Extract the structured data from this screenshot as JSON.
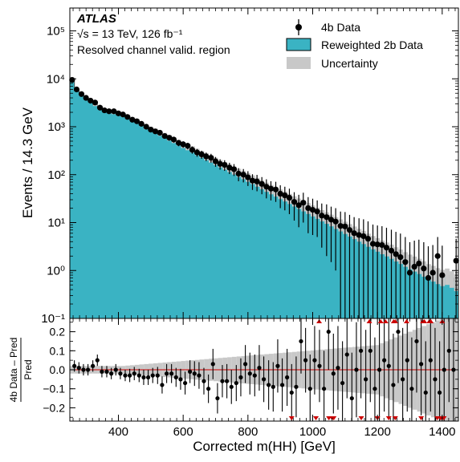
{
  "chart_data": [
    {
      "type": "histogram",
      "panel": "main",
      "log_y": true,
      "xlabel": "Corrected m(HH) [GeV]",
      "ylabel": "Events / 14.3 GeV",
      "xlim": [
        250,
        1450
      ],
      "ylim": [
        0.1,
        300000
      ],
      "y_ticks": [
        0.1,
        1,
        10,
        100,
        1000,
        10000,
        100000
      ],
      "y_tick_labels": [
        "10⁻¹",
        "10⁰",
        "10¹",
        "10²",
        "10³",
        "10⁴",
        "10⁵"
      ],
      "annotations": {
        "experiment": "ATLAS",
        "energy": "√s = 13 TeV, 126 fb⁻¹",
        "region": "Resolved channel valid. region"
      },
      "legend": {
        "placement": "top-right",
        "entries": [
          {
            "label": "4b Data",
            "style": "marker",
            "color": "#000000"
          },
          {
            "label": "Reweighted 2b Data",
            "style": "fill",
            "color": "#3ab3c3"
          },
          {
            "label": "Uncertainty",
            "style": "fill",
            "color": "#c8c8c8"
          }
        ]
      },
      "series": [
        {
          "name": "Reweighted 2b Data",
          "kind": "filled-step",
          "x_edges_start": 250,
          "bin_width": 14.3,
          "values": [
            9000,
            6000,
            4700,
            3900,
            3400,
            2900,
            2500,
            2250,
            2100,
            2000,
            1900,
            1750,
            1600,
            1450,
            1300,
            1150,
            1000,
            900,
            820,
            740,
            660,
            590,
            530,
            470,
            420,
            380,
            340,
            300,
            270,
            240,
            215,
            192,
            172,
            155,
            139,
            124,
            111,
            100,
            89,
            80,
            71,
            63,
            56,
            50,
            45,
            40,
            36,
            32,
            28.5,
            25.5,
            22.8,
            20.3,
            18.1,
            16.2,
            14.4,
            12.9,
            11.5,
            10.2,
            9.1,
            8.1,
            7.2,
            6.4,
            5.7,
            5.1,
            4.5,
            4.0,
            3.6,
            3.2,
            2.9,
            2.6,
            2.3,
            2.05,
            1.8,
            1.6,
            1.45,
            1.3,
            1.15,
            1.0,
            0.92,
            0.82,
            0.75,
            0.8,
            0.7,
            0.6,
            0.12
          ]
        },
        {
          "name": "4b Data",
          "kind": "points",
          "x": [
            257,
            271,
            286,
            300,
            314,
            328,
            343,
            357,
            371,
            386,
            400,
            414,
            428,
            443,
            457,
            471,
            486,
            500,
            514,
            528,
            543,
            557,
            571,
            586,
            600,
            614,
            628,
            643,
            657,
            671,
            686,
            700,
            714,
            728,
            743,
            757,
            771,
            786,
            800,
            814,
            828,
            843,
            857,
            871,
            886,
            900,
            914,
            928,
            943,
            957,
            971,
            986,
            1000,
            1014,
            1028,
            1043,
            1057,
            1071,
            1086,
            1100,
            1114,
            1128,
            1143,
            1157,
            1171,
            1186,
            1200,
            1214,
            1228,
            1243,
            1257,
            1271,
            1286,
            1300,
            1314,
            1328,
            1343,
            1357,
            1371,
            1386,
            1400,
            1443
          ],
          "y": [
            9500,
            6000,
            4800,
            4000,
            3500,
            3200,
            2500,
            2200,
            2100,
            2100,
            1900,
            1800,
            1600,
            1400,
            1300,
            1150,
            1000,
            870,
            800,
            750,
            640,
            590,
            540,
            460,
            430,
            400,
            330,
            290,
            265,
            240,
            225,
            190,
            168,
            160,
            140,
            130,
            105,
            100,
            88,
            75,
            72,
            64,
            56,
            51,
            49,
            40,
            37,
            33,
            27,
            23,
            26,
            20,
            18.5,
            17,
            14,
            13,
            11.5,
            10.5,
            8.5,
            8.3,
            7.0,
            6.0,
            5.5,
            5.2,
            4.6,
            3.6,
            3.5,
            3.4,
            3.0,
            2.6,
            2.2,
            1.9,
            1.5,
            0.9,
            1.2,
            1.4,
            1.1,
            0.7,
            0.9,
            2.0,
            0.8,
            1.6
          ],
          "y_err": [
            300,
            240,
            215,
            200,
            185,
            178,
            158,
            148,
            145,
            145,
            138,
            134,
            126,
            118,
            114,
            107,
            100,
            93,
            89,
            87,
            80,
            77,
            73,
            68,
            66,
            63,
            57,
            54,
            51,
            49,
            47,
            44,
            41,
            40,
            37,
            36,
            32,
            31,
            30,
            27,
            27,
            25,
            24,
            22,
            22,
            20,
            19,
            18,
            16,
            15,
            16,
            14,
            13,
            12,
            11,
            11,
            10,
            9.5,
            8.5,
            8.3,
            7.5,
            7,
            6.8,
            6.5,
            6,
            5.5,
            5.2,
            5,
            4.8,
            4.5,
            4.2,
            4,
            3.5,
            3,
            3,
            3,
            2.8,
            2.5,
            2.5,
            3,
            2.5,
            3
          ]
        }
      ]
    },
    {
      "type": "scatter",
      "panel": "ratio",
      "xlabel": "Corrected m(HH) [GeV]",
      "ylabel": "4b Data – Pred / Pred",
      "ylabel_numerator": "4b Data – Pred",
      "ylabel_denominator": "Pred",
      "xlim": [
        250,
        1450
      ],
      "ylim": [
        -0.27,
        0.27
      ],
      "x_ticks": [
        400,
        600,
        800,
        1000,
        1200,
        1400
      ],
      "x_tick_labels": [
        "400",
        "600",
        "800",
        "1000",
        "1200",
        "1400"
      ],
      "y_ticks": [
        -0.2,
        -0.1,
        0.0,
        0.1,
        0.2
      ],
      "y_tick_labels": [
        "−0.2",
        "−0.1",
        "0.0",
        "0.1",
        "0.2"
      ],
      "reference_line": {
        "y": 0,
        "color": "#cc0000"
      },
      "uncertainty_band_halfwidth": [
        0.02,
        0.02,
        0.02,
        0.02,
        0.02,
        0.02,
        0.02,
        0.02,
        0.02,
        0.02,
        0.02,
        0.02,
        0.022,
        0.024,
        0.026,
        0.028,
        0.03,
        0.032,
        0.034,
        0.036,
        0.038,
        0.04,
        0.042,
        0.044,
        0.046,
        0.048,
        0.05,
        0.052,
        0.054,
        0.056,
        0.058,
        0.06,
        0.062,
        0.064,
        0.066,
        0.068,
        0.07,
        0.072,
        0.074,
        0.076,
        0.078,
        0.08,
        0.082,
        0.084,
        0.086,
        0.088,
        0.09,
        0.092,
        0.094,
        0.096,
        0.098,
        0.1,
        0.102,
        0.104,
        0.106,
        0.108,
        0.11,
        0.112,
        0.114,
        0.116,
        0.118,
        0.12,
        0.122,
        0.124,
        0.126,
        0.128,
        0.13,
        0.14,
        0.15,
        0.16,
        0.17,
        0.18,
        0.19,
        0.2,
        0.21,
        0.22,
        0.23,
        0.24,
        0.25,
        0.26,
        0.27,
        0.27,
        0.27,
        0.27,
        0.27
      ],
      "points": {
        "x": [
          264,
          278,
          292,
          306,
          321,
          335,
          349,
          364,
          378,
          392,
          406,
          421,
          435,
          449,
          464,
          478,
          492,
          506,
          521,
          535,
          549,
          564,
          578,
          592,
          606,
          621,
          635,
          649,
          664,
          678,
          692,
          706,
          721,
          735,
          749,
          764,
          778,
          792,
          806,
          821,
          835,
          849,
          864,
          878,
          892,
          906,
          921,
          935,
          949,
          964,
          978,
          992,
          1006,
          1021,
          1035,
          1049,
          1064,
          1078,
          1092,
          1106,
          1121,
          1135,
          1149,
          1164,
          1178,
          1192,
          1206,
          1221,
          1235,
          1249,
          1264,
          1278,
          1292,
          1306,
          1321,
          1335,
          1349,
          1364,
          1378,
          1392,
          1406,
          1421,
          1435
        ],
        "y": [
          0.02,
          0.01,
          0.0,
          0.0,
          0.02,
          0.05,
          -0.01,
          -0.01,
          -0.02,
          0.0,
          -0.02,
          -0.03,
          -0.03,
          -0.02,
          -0.03,
          -0.04,
          -0.04,
          -0.03,
          -0.03,
          -0.08,
          -0.02,
          -0.02,
          -0.04,
          -0.05,
          -0.07,
          -0.01,
          -0.02,
          -0.03,
          -0.06,
          -0.1,
          0.03,
          -0.15,
          -0.06,
          -0.06,
          -0.09,
          -0.07,
          -0.04,
          0.03,
          -0.02,
          -0.03,
          0.01,
          -0.05,
          -0.08,
          -0.09,
          0.02,
          -0.08,
          -0.04,
          -0.12,
          -0.09,
          0.15,
          0.05,
          -0.1,
          0.05,
          0.02,
          -0.1,
          0.2,
          -0.02,
          0.01,
          -0.07,
          0.08,
          -0.15,
          0.0,
          0.1,
          -0.05,
          0.1,
          -0.1,
          0.0,
          0.05,
          0.02,
          -0.08,
          0.2,
          -0.05,
          0.05,
          -0.1,
          0.15,
          0.03,
          -0.12,
          0.05,
          -0.05,
          -0.12,
          0.0,
          0.1,
          0.0
        ],
        "y_err": [
          0.03,
          0.03,
          0.03,
          0.03,
          0.03,
          0.03,
          0.03,
          0.03,
          0.03,
          0.03,
          0.03,
          0.03,
          0.035,
          0.035,
          0.035,
          0.04,
          0.04,
          0.04,
          0.045,
          0.045,
          0.05,
          0.05,
          0.05,
          0.055,
          0.06,
          0.06,
          0.065,
          0.07,
          0.07,
          0.075,
          0.08,
          0.08,
          0.085,
          0.09,
          0.09,
          0.095,
          0.1,
          0.1,
          0.11,
          0.11,
          0.12,
          0.12,
          0.13,
          0.13,
          0.14,
          0.14,
          0.15,
          0.15,
          0.16,
          0.17,
          0.17,
          0.18,
          0.18,
          0.19,
          0.2,
          0.2,
          0.21,
          0.22,
          0.22,
          0.23,
          0.24,
          0.25,
          0.25,
          0.26,
          0.27,
          0.27,
          0.27,
          0.27,
          0.27,
          0.27,
          0.27,
          0.27,
          0.27,
          0.27,
          0.27,
          0.27,
          0.27,
          0.27,
          0.27,
          0.27,
          0.27,
          0.27,
          0.27
        ]
      },
      "overflow_markers_up_x": [
        1020,
        1175,
        1210,
        1225,
        1250,
        1255,
        1290,
        1340,
        1345,
        1360,
        1365,
        1400
      ],
      "overflow_markers_down_x": [
        935,
        1010,
        1050,
        1060,
        1065,
        1150,
        1200,
        1235,
        1255,
        1335,
        1385,
        1395,
        1400,
        1405
      ]
    }
  ]
}
